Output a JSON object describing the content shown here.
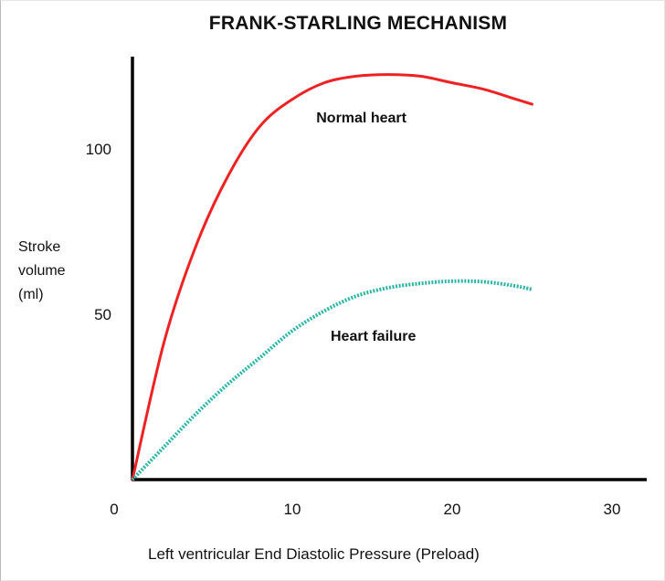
{
  "chart_data": {
    "type": "line",
    "title": "FRANK-STARLING MECHANISM",
    "xlabel": "Left ventricular End Diastolic Pressure (Preload)",
    "ylabel": [
      "Stroke",
      "volume",
      "(ml)"
    ],
    "xlim": [
      0,
      33
    ],
    "ylim": [
      0,
      127
    ],
    "x_ticks": [
      {
        "value": 0,
        "label": "0"
      },
      {
        "value": 10,
        "label": "10"
      },
      {
        "value": 20,
        "label": "20"
      },
      {
        "value": 30,
        "label": "30"
      }
    ],
    "y_ticks": [
      {
        "value": 50,
        "label": "50"
      },
      {
        "value": 100,
        "label": "100"
      }
    ],
    "grid": false,
    "legend": "none",
    "series": [
      {
        "label": "Normal heart",
        "color": "#ee2222",
        "style": "solid",
        "points": [
          [
            0,
            0
          ],
          [
            2,
            42
          ],
          [
            4,
            71
          ],
          [
            6,
            92
          ],
          [
            8,
            107
          ],
          [
            10,
            115
          ],
          [
            12,
            120
          ],
          [
            14,
            122
          ],
          [
            16,
            122.5
          ],
          [
            18,
            122
          ],
          [
            20,
            120
          ],
          [
            22,
            118
          ],
          [
            24,
            115
          ],
          [
            25,
            113.5
          ]
        ],
        "label_at": [
          11.5,
          108
        ]
      },
      {
        "label": "Heart failure",
        "color": "#2ab5a9",
        "style": "dotted",
        "points": [
          [
            0,
            0
          ],
          [
            2,
            10
          ],
          [
            4,
            20
          ],
          [
            6,
            29
          ],
          [
            8,
            37
          ],
          [
            10,
            45
          ],
          [
            12,
            51
          ],
          [
            14,
            55.5
          ],
          [
            16,
            58
          ],
          [
            18,
            59.3
          ],
          [
            20,
            60
          ],
          [
            22,
            59.8
          ],
          [
            24,
            58.5
          ],
          [
            25,
            57.5
          ]
        ],
        "label_at": [
          12.4,
          42
        ]
      }
    ]
  }
}
